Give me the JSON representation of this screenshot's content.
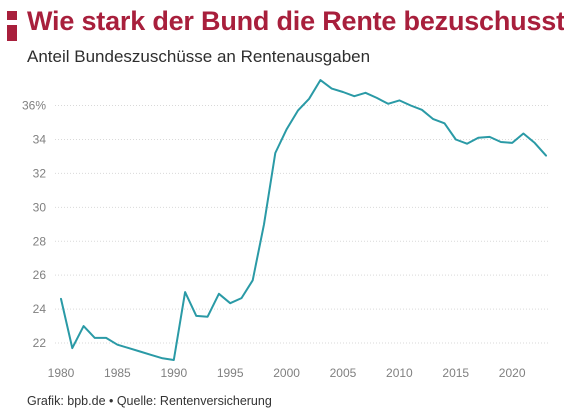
{
  "header": {
    "title": "Wie stark der Bund die Rente bezuschusst",
    "subtitle": "Anteil Bundeszuschüsse an Rentenausgaben"
  },
  "footer": {
    "source": "Grafik: bpb.de • Quelle: Rentenversicherung"
  },
  "colors": {
    "accent": "#a81f3c",
    "line": "#2a9aa6"
  },
  "chart_data": {
    "type": "line",
    "title": "Wie stark der Bund die Rente bezuschusst",
    "subtitle": "Anteil Bundeszuschüsse an Rentenausgaben",
    "xlabel": "",
    "ylabel": "",
    "xlim": [
      1980,
      2023
    ],
    "ylim": [
      21,
      37.8
    ],
    "grid": true,
    "x_ticks": [
      1980,
      1985,
      1990,
      1995,
      2000,
      2005,
      2010,
      2015,
      2020
    ],
    "x_tick_labels": [
      "1980",
      "1985",
      "1990",
      "1995",
      "2000",
      "2005",
      "2010",
      "2015",
      "2020"
    ],
    "y_ticks": [
      22,
      24,
      26,
      28,
      30,
      32,
      34,
      36
    ],
    "y_tick_labels": [
      "22",
      "24",
      "26",
      "28",
      "30",
      "32",
      "34",
      "36%"
    ],
    "series": [
      {
        "name": "",
        "color": "#2a9aa6",
        "x": [
          1980,
          1981,
          1982,
          1983,
          1984,
          1985,
          1986,
          1987,
          1988,
          1989,
          1990,
          1991,
          1992,
          1993,
          1994,
          1995,
          1996,
          1997,
          1998,
          1999,
          2000,
          2001,
          2002,
          2003,
          2004,
          2005,
          2006,
          2007,
          2008,
          2009,
          2010,
          2011,
          2012,
          2013,
          2014,
          2015,
          2016,
          2017,
          2018,
          2019,
          2020,
          2021,
          2022,
          2023
        ],
        "values": [
          24.6,
          21.7,
          23.0,
          22.3,
          22.3,
          21.9,
          21.7,
          21.5,
          21.3,
          21.1,
          21.0,
          25.0,
          23.6,
          23.55,
          24.9,
          24.35,
          24.65,
          25.7,
          29.0,
          33.2,
          34.6,
          35.7,
          36.4,
          37.5,
          37.0,
          36.8,
          36.55,
          36.75,
          36.45,
          36.1,
          36.3,
          36.0,
          35.75,
          35.2,
          34.95,
          34.0,
          33.75,
          34.1,
          34.15,
          33.85,
          33.8,
          34.35,
          33.8,
          33.05
        ]
      }
    ]
  }
}
